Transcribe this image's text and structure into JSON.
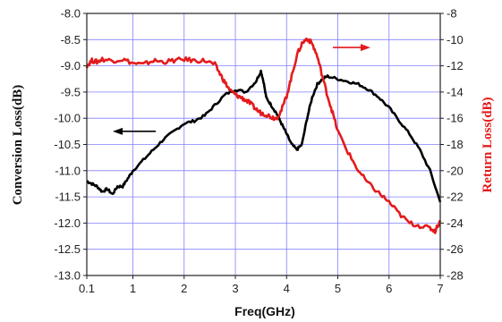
{
  "chart_data": {
    "type": "line",
    "xlabel": "Freq(GHz)",
    "ylabel_left": "Conversion Loss(dB)",
    "ylabel_right": "Return Loss(dB)",
    "x_ticks": [
      0.1,
      1,
      2,
      3,
      4,
      5,
      6,
      7
    ],
    "x_tick_labels": [
      "0.1",
      "1",
      "2",
      "3",
      "4",
      "5",
      "6",
      "7"
    ],
    "xlim": [
      0.1,
      7
    ],
    "left_ticks": [
      -8.0,
      -8.5,
      -9.0,
      -9.5,
      -10.0,
      -10.5,
      -11.0,
      -11.5,
      -12.0,
      -12.5,
      -13.0
    ],
    "left_tick_labels": [
      "-8.0",
      "-8.5",
      "-9.0",
      "-9.5",
      "-10.0",
      "-10.5",
      "-11.0",
      "-11.5",
      "-12.0",
      "-12.5",
      "-13.0"
    ],
    "ylim_left": [
      -13.0,
      -8.0
    ],
    "right_ticks": [
      -8,
      -10,
      -12,
      -14,
      -16,
      -18,
      -20,
      -22,
      -24,
      -26,
      -28
    ],
    "right_tick_labels": [
      "-8",
      "-10",
      "-12",
      "-14",
      "-16",
      "-18",
      "-20",
      "-22",
      "-24",
      "-26",
      "-28"
    ],
    "ylim_right": [
      -28,
      -8
    ],
    "grid": true,
    "colors": {
      "conversion": "#000000",
      "return": "#e41a1c",
      "grid": "#8080ff",
      "right_axis_label": "#e41a1c"
    },
    "series": [
      {
        "axis": "left",
        "x": [
          0.1,
          0.2,
          0.3,
          0.4,
          0.5,
          0.6,
          0.7,
          0.8,
          0.9,
          1.0,
          1.2,
          1.4,
          1.6,
          1.8,
          2.0,
          2.2,
          2.4,
          2.6,
          2.8,
          3.0,
          3.2,
          3.4,
          3.5,
          3.55,
          3.6,
          3.7,
          3.8,
          3.9,
          4.0,
          4.1,
          4.2,
          4.3,
          4.4,
          4.5,
          4.6,
          4.7,
          4.8,
          5.0,
          5.2,
          5.4,
          5.6,
          5.8,
          6.0,
          6.2,
          6.4,
          6.6,
          6.8,
          7.0
        ],
        "values": [
          -11.2,
          -11.25,
          -11.3,
          -11.4,
          -11.35,
          -11.45,
          -11.3,
          -11.3,
          -11.15,
          -11.0,
          -10.8,
          -10.6,
          -10.4,
          -10.25,
          -10.1,
          -10.05,
          -9.95,
          -9.75,
          -9.55,
          -9.45,
          -9.5,
          -9.3,
          -9.1,
          -9.3,
          -9.6,
          -9.75,
          -9.9,
          -10.1,
          -10.3,
          -10.5,
          -10.6,
          -10.5,
          -10.0,
          -9.6,
          -9.35,
          -9.25,
          -9.2,
          -9.25,
          -9.3,
          -9.35,
          -9.45,
          -9.6,
          -9.8,
          -10.05,
          -10.3,
          -10.6,
          -11.0,
          -11.6
        ]
      },
      {
        "axis": "right",
        "x": [
          0.1,
          0.2,
          0.3,
          0.4,
          0.6,
          0.8,
          1.0,
          1.2,
          1.4,
          1.6,
          1.8,
          2.0,
          2.2,
          2.4,
          2.6,
          2.7,
          2.8,
          2.9,
          3.0,
          3.1,
          3.2,
          3.3,
          3.4,
          3.5,
          3.6,
          3.7,
          3.8,
          3.9,
          4.0,
          4.1,
          4.2,
          4.3,
          4.4,
          4.5,
          4.6,
          4.7,
          4.8,
          4.9,
          5.0,
          5.2,
          5.4,
          5.6,
          5.8,
          6.0,
          6.2,
          6.4,
          6.6,
          6.8,
          6.9,
          7.0
        ],
        "values": [
          -12.0,
          -11.6,
          -11.7,
          -11.5,
          -11.6,
          -11.5,
          -11.8,
          -11.9,
          -11.6,
          -11.7,
          -11.6,
          -11.5,
          -11.6,
          -11.6,
          -11.9,
          -12.6,
          -13.3,
          -13.9,
          -14.2,
          -14.4,
          -14.6,
          -14.9,
          -15.3,
          -15.6,
          -15.7,
          -15.9,
          -16.0,
          -15.4,
          -14.3,
          -12.8,
          -11.2,
          -10.3,
          -9.9,
          -10.3,
          -11.3,
          -12.8,
          -14.3,
          -15.6,
          -17.0,
          -18.6,
          -20.0,
          -21.0,
          -21.7,
          -22.4,
          -23.3,
          -24.0,
          -24.2,
          -24.4,
          -24.6,
          -23.8
        ]
      }
    ]
  }
}
